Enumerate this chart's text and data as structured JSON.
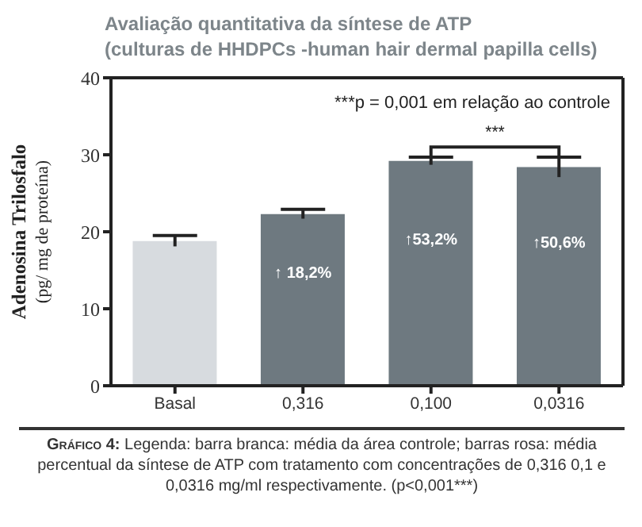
{
  "chart_data": {
    "type": "bar",
    "title": "Avaliação quantitativa da síntese de ATP\n(culturas de HHDPCs -human hair dermal papilla cells)",
    "ylabel": "Adenosina Trilosfalo\n(pg/ mg de proteína)",
    "categories": [
      "Basal",
      "0,316",
      "0,100",
      "0,0316"
    ],
    "values": [
      18.8,
      22.3,
      29.2,
      28.4
    ],
    "errors": [
      0.7,
      0.6,
      0.5,
      1.3
    ],
    "colors": [
      "#d7dbdf",
      "#6e7980",
      "#6e7980",
      "#6e7980"
    ],
    "ylim": [
      0,
      40
    ],
    "yticks": [
      0,
      10,
      20,
      30,
      40
    ],
    "annotations": [
      "***p = 0,001 em relação ao controle",
      "***",
      "↑ 18,2%",
      "↑53,2%",
      "↑50,6%",
      "Gráfico 4: Legenda: barra branca: média da área controle; barras rosa: média percentual da síntese de ATP  com tratamento com concentrações de 0,316 0,1 e 0,0316 mg/ml respectivamente. (p<0,001***)"
    ]
  }
}
